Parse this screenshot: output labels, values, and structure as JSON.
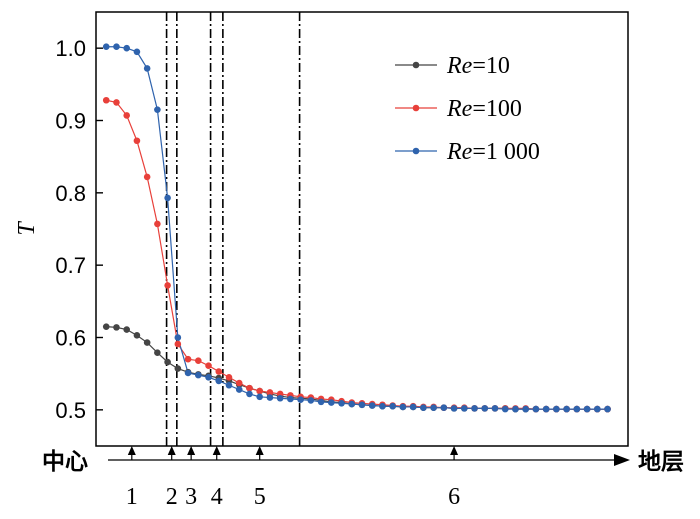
{
  "chart_data": {
    "type": "line",
    "ylabel": "T",
    "ylim": [
      0.45,
      1.05
    ],
    "y_ticks": [
      "0.5",
      "0.6",
      "0.7",
      "0.8",
      "0.9",
      "1.0"
    ],
    "x_index_range": [
      -1,
      51
    ],
    "grid": false,
    "legend_position": "top-right",
    "x": [
      0,
      1,
      2,
      3,
      4,
      5,
      6,
      7,
      8,
      9,
      10,
      11,
      12,
      13,
      14,
      15,
      16,
      17,
      18,
      19,
      20,
      21,
      22,
      23,
      24,
      25,
      26,
      27,
      28,
      29,
      30,
      31,
      32,
      33,
      34,
      35,
      36,
      37,
      38,
      39,
      40,
      41,
      42,
      43,
      44,
      45,
      46,
      47,
      48,
      49
    ],
    "series": [
      {
        "name_prefix": "Re",
        "name_value": "=10",
        "color": "#454545",
        "values": [
          0.615,
          0.614,
          0.611,
          0.603,
          0.593,
          0.579,
          0.566,
          0.557,
          0.552,
          0.549,
          0.547,
          0.544,
          0.54,
          0.535,
          0.53,
          0.526,
          0.522,
          0.519,
          0.517,
          0.516,
          0.515,
          0.513,
          0.511,
          0.51,
          0.508,
          0.507,
          0.506,
          0.505,
          0.505,
          0.504,
          0.504,
          0.503,
          0.503,
          0.503,
          0.502,
          0.502,
          0.502,
          0.502,
          0.502,
          0.502,
          0.501,
          0.501,
          0.501,
          0.501,
          0.501,
          0.501,
          0.501,
          0.501,
          0.501,
          0.501
        ]
      },
      {
        "name_prefix": "Re",
        "name_value": "=100",
        "color": "#e8403a",
        "values": [
          0.928,
          0.925,
          0.907,
          0.872,
          0.822,
          0.757,
          0.672,
          0.591,
          0.57,
          0.568,
          0.561,
          0.553,
          0.545,
          0.537,
          0.53,
          0.526,
          0.524,
          0.522,
          0.52,
          0.518,
          0.517,
          0.515,
          0.514,
          0.512,
          0.51,
          0.509,
          0.508,
          0.507,
          0.506,
          0.505,
          0.505,
          0.504,
          0.504,
          0.503,
          0.503,
          0.503,
          0.502,
          0.502,
          0.502,
          0.502,
          0.502,
          0.502,
          0.501,
          0.501,
          0.501,
          0.501,
          0.501,
          0.501,
          0.501,
          0.501
        ]
      },
      {
        "name_prefix": "Re",
        "name_value": "=1 000",
        "color": "#2f63ad",
        "values": [
          1.002,
          1.002,
          1.0,
          0.995,
          0.972,
          0.915,
          0.793,
          0.6,
          0.551,
          0.548,
          0.545,
          0.54,
          0.534,
          0.528,
          0.522,
          0.518,
          0.517,
          0.516,
          0.515,
          0.514,
          0.513,
          0.511,
          0.51,
          0.509,
          0.508,
          0.507,
          0.506,
          0.505,
          0.505,
          0.504,
          0.504,
          0.503,
          0.503,
          0.503,
          0.502,
          0.502,
          0.502,
          0.502,
          0.502,
          0.501,
          0.501,
          0.501,
          0.501,
          0.501,
          0.501,
          0.501,
          0.501,
          0.501,
          0.501,
          0.501
        ]
      }
    ],
    "boundary_lines_x": [
      5.9,
      6.9,
      10.2,
      11.4,
      18.9
    ],
    "regions": [
      {
        "label": "1",
        "x": 2.5
      },
      {
        "label": "2",
        "x": 6.4
      },
      {
        "label": "3",
        "x": 8.3
      },
      {
        "label": "4",
        "x": 10.8
      },
      {
        "label": "5",
        "x": 15.0
      },
      {
        "label": "6",
        "x": 34.0
      }
    ],
    "axis_start_label": "中心",
    "axis_end_label": "地层"
  }
}
